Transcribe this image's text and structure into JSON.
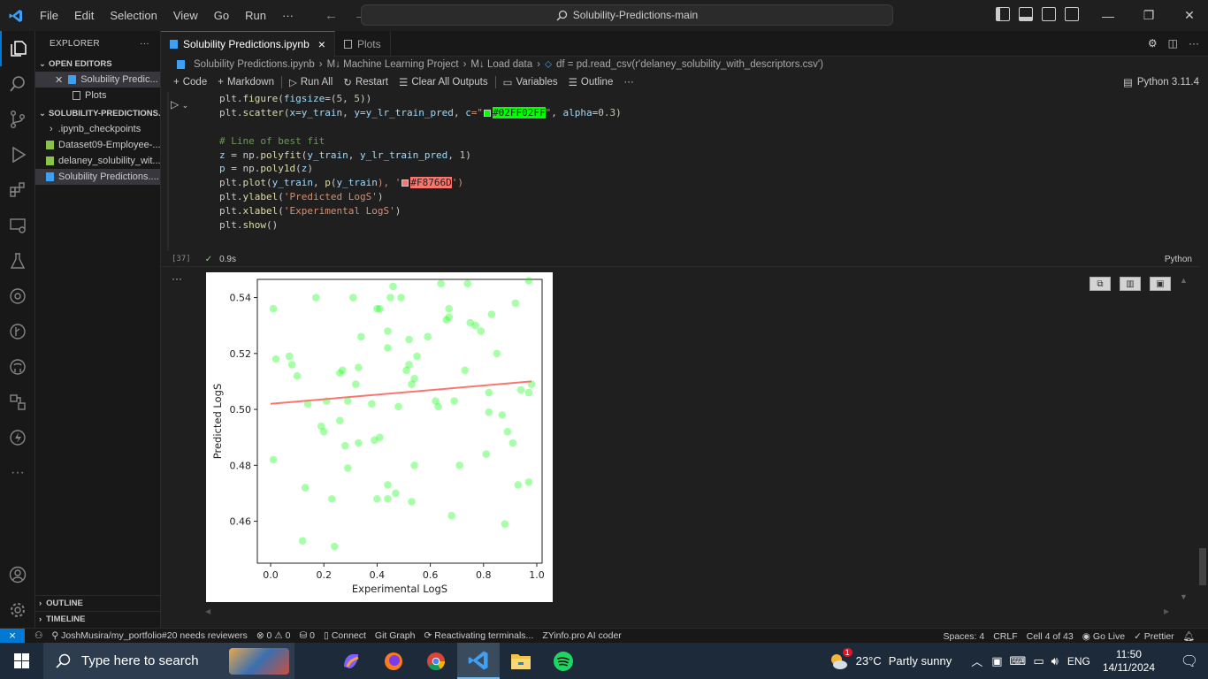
{
  "menu": [
    "File",
    "Edit",
    "Selection",
    "View",
    "Go",
    "Run",
    "···"
  ],
  "search": "Solubility-Predictions-main",
  "explorer": {
    "title": "EXPLORER",
    "more": "···",
    "open_editors": "OPEN EDITORS",
    "open_items": [
      "Solubility Predic...",
      "Plots"
    ],
    "project": "SOLUBILITY-PREDICTIONS...",
    "files": [
      ".ipynb_checkpoints",
      "Dataset09-Employee-...",
      "delaney_solubility_wit...",
      "Solubility Predictions...."
    ],
    "outline": "OUTLINE",
    "timeline": "TIMELINE"
  },
  "tabs": [
    {
      "label": "Solubility Predictions.ipynb",
      "close": "×"
    },
    {
      "label": "Plots"
    }
  ],
  "breadcrumb": [
    "Solubility Predictions.ipynb",
    "M↓ Machine Learning Project",
    "M↓ Load data",
    "df = pd.read_csv(r'delaney_solubility_with_descriptors.csv')"
  ],
  "toolbar": {
    "code": "Code",
    "markdown": "Markdown",
    "run_all": "Run All",
    "restart": "Restart",
    "clear": "Clear All Outputs",
    "variables": "Variables",
    "outline": "Outline",
    "more": "···",
    "kernel": "Python 3.11.4"
  },
  "code": {
    "l1a": "plt.",
    "l1b": "figure",
    "l1c": "(",
    "l1d": "figsize",
    "l1e": "=(",
    "l1f": "5",
    "l1g": ", ",
    "l1h": "5",
    "l1i": "))",
    "l2a": "plt.",
    "l2b": "scatter",
    "l2c": "(",
    "l2d": "x",
    "l2e": "=",
    "l2f": "y_train",
    "l2g": ", ",
    "l2h": "y",
    "l2i": "=",
    "l2j": "y_lr_train_pred",
    "l2k": ", ",
    "l2l": "c",
    "l2m": "=\"",
    "l2n": "#02FF02FF",
    "l2o": "\"",
    "l2p": ", ",
    "l2q": "alpha",
    "l2r": "=",
    "l2s": "0.3",
    "l2t": ")",
    "l4": "# Line of best fit",
    "l5a": "z",
    "l5b": " = np.",
    "l5c": "polyfit",
    "l5d": "(",
    "l5e": "y_train",
    "l5f": ", ",
    "l5g": "y_lr_train_pred",
    "l5h": ", ",
    "l5i": "1",
    "l5j": ")",
    "l6a": "p",
    "l6b": " = np.",
    "l6c": "poly1d",
    "l6d": "(",
    "l6e": "z",
    "l6f": ")",
    "l7a": "plt.",
    "l7b": "plot",
    "l7c": "(",
    "l7d": "y_train",
    "l7e": ", ",
    "l7f": "p",
    "l7g": "(",
    "l7h": "y_train",
    "l7i": "), '",
    "l7j": "#F8766D",
    "l7k": "')",
    "l8a": "plt.",
    "l8b": "ylabel",
    "l8c": "(",
    "l8d": "'Predicted LogS'",
    "l8e": ")",
    "l9a": "plt.",
    "l9b": "xlabel",
    "l9c": "(",
    "l9d": "'Experimental LogS'",
    "l9e": ")",
    "l10a": "plt.",
    "l10b": "show",
    "l10c": "()"
  },
  "cell": {
    "index": "[37]",
    "time": "0.9s",
    "lang": "Python",
    "more": "···"
  },
  "colors": {
    "scatter": "#02FF02",
    "line": "#F8766D",
    "accent": "#0078d4"
  },
  "chart_data": {
    "type": "scatter",
    "xlabel": "Experimental LogS",
    "ylabel": "Predicted LogS",
    "xlim": [
      -0.05,
      1.02
    ],
    "ylim": [
      0.445,
      0.5465
    ],
    "xticks": [
      "0.0",
      "0.2",
      "0.4",
      "0.6",
      "0.8",
      "1.0"
    ],
    "yticks": [
      "0.46",
      "0.48",
      "0.50",
      "0.52",
      "0.54"
    ],
    "xtick_values": [
      0,
      0.2,
      0.4,
      0.6,
      0.8,
      1.0
    ],
    "ytick_values": [
      0.46,
      0.48,
      0.5,
      0.52,
      0.54
    ],
    "points": [
      [
        0.01,
        0.536
      ],
      [
        0.01,
        0.482
      ],
      [
        0.02,
        0.518
      ],
      [
        0.07,
        0.519
      ],
      [
        0.08,
        0.516
      ],
      [
        0.1,
        0.512
      ],
      [
        0.12,
        0.453
      ],
      [
        0.13,
        0.472
      ],
      [
        0.14,
        0.502
      ],
      [
        0.17,
        0.54
      ],
      [
        0.19,
        0.494
      ],
      [
        0.2,
        0.492
      ],
      [
        0.21,
        0.503
      ],
      [
        0.23,
        0.468
      ],
      [
        0.24,
        0.451
      ],
      [
        0.26,
        0.496
      ],
      [
        0.26,
        0.513
      ],
      [
        0.27,
        0.514
      ],
      [
        0.28,
        0.487
      ],
      [
        0.29,
        0.503
      ],
      [
        0.29,
        0.479
      ],
      [
        0.31,
        0.54
      ],
      [
        0.32,
        0.509
      ],
      [
        0.33,
        0.515
      ],
      [
        0.33,
        0.488
      ],
      [
        0.34,
        0.526
      ],
      [
        0.38,
        0.502
      ],
      [
        0.39,
        0.489
      ],
      [
        0.4,
        0.468
      ],
      [
        0.4,
        0.536
      ],
      [
        0.41,
        0.536
      ],
      [
        0.41,
        0.49
      ],
      [
        0.44,
        0.468
      ],
      [
        0.44,
        0.473
      ],
      [
        0.44,
        0.522
      ],
      [
        0.44,
        0.528
      ],
      [
        0.45,
        0.54
      ],
      [
        0.46,
        0.544
      ],
      [
        0.47,
        0.47
      ],
      [
        0.48,
        0.501
      ],
      [
        0.49,
        0.54
      ],
      [
        0.51,
        0.514
      ],
      [
        0.52,
        0.516
      ],
      [
        0.52,
        0.525
      ],
      [
        0.53,
        0.467
      ],
      [
        0.53,
        0.509
      ],
      [
        0.54,
        0.511
      ],
      [
        0.54,
        0.48
      ],
      [
        0.55,
        0.519
      ],
      [
        0.59,
        0.526
      ],
      [
        0.62,
        0.503
      ],
      [
        0.63,
        0.501
      ],
      [
        0.64,
        0.545
      ],
      [
        0.66,
        0.532
      ],
      [
        0.67,
        0.533
      ],
      [
        0.67,
        0.536
      ],
      [
        0.68,
        0.462
      ],
      [
        0.69,
        0.503
      ],
      [
        0.71,
        0.48
      ],
      [
        0.73,
        0.514
      ],
      [
        0.74,
        0.545
      ],
      [
        0.75,
        0.531
      ],
      [
        0.77,
        0.53
      ],
      [
        0.79,
        0.528
      ],
      [
        0.81,
        0.484
      ],
      [
        0.82,
        0.499
      ],
      [
        0.82,
        0.506
      ],
      [
        0.83,
        0.534
      ],
      [
        0.85,
        0.52
      ],
      [
        0.87,
        0.498
      ],
      [
        0.88,
        0.459
      ],
      [
        0.89,
        0.492
      ],
      [
        0.91,
        0.488
      ],
      [
        0.92,
        0.538
      ],
      [
        0.93,
        0.473
      ],
      [
        0.94,
        0.507
      ],
      [
        0.97,
        0.474
      ],
      [
        0.97,
        0.506
      ],
      [
        0.97,
        0.546
      ],
      [
        0.98,
        0.509
      ]
    ],
    "fit_line": [
      [
        0.0,
        0.502
      ],
      [
        0.98,
        0.51
      ]
    ]
  },
  "statusbar": {
    "branch": "JoshMusira/my_portfolio#20 needs reviewers",
    "problems": "⊗ 0 ⚠ 0",
    "ports": "⛁ 0",
    "connect": "Connect",
    "gitgraph": "Git Graph",
    "reactivating": "Reactivating terminals...",
    "zy": "ZYinfo.pro AI coder",
    "spaces": "Spaces: 4",
    "eol": "CRLF",
    "cell": "Cell 4 of 43",
    "golive": "Go Live",
    "prettier": "✓ Prettier"
  },
  "taskbar": {
    "search": "Type here to search",
    "temp": "23°C",
    "weather": "Partly sunny",
    "lang": "ENG",
    "time": "11:50",
    "date": "14/11/2024",
    "weather_badge": "1"
  }
}
